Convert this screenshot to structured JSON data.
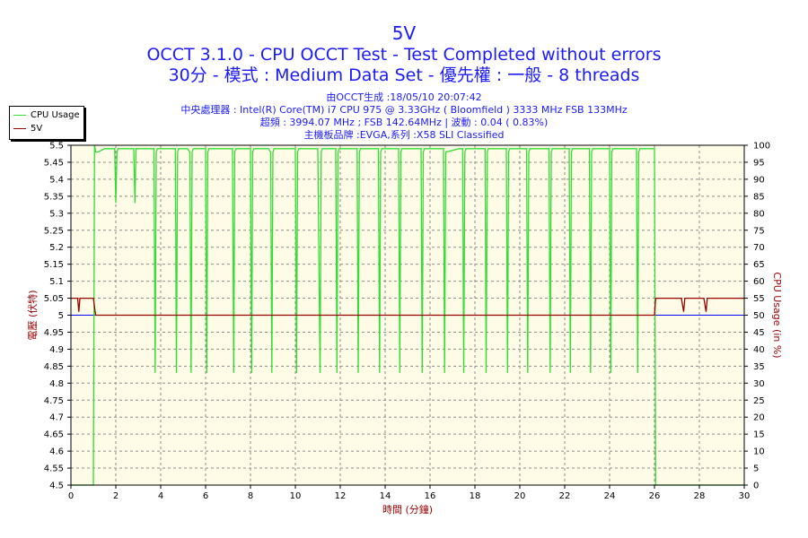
{
  "title": "5V",
  "subtitle1": "OCCT 3.1.0 - CPU OCCT Test - Test Completed without errors",
  "subtitle2": "30分 - 模式 : Medium Data Set - 優先權 : 一般 - 8 threads",
  "info_lines": [
    "由OCCT生成 :18/05/10 20:07:42",
    "中央處理器 : Intel(R) Core(TM) i7 CPU 975 @ 3.33GHz ( Bloomfield ) 3333 MHz FSB 133MHz",
    "超頻 : 3994.07 MHz ; FSB 142.64MHz | 波動 : 0.04 ( 0.83%)",
    "主機板品牌 :EVGA,系列 :X58 SLI Classified"
  ],
  "colors": {
    "title": "#1a1aff",
    "plot_bg": "#fefbe6",
    "grid": "#8c8c8c",
    "cpu_usage": "#33dd33",
    "voltage": "#990000",
    "reference": "#0000ff",
    "left_axis_title": "#990000",
    "right_axis_title": "#990000",
    "x_axis_title": "#990000"
  },
  "chart_data": {
    "type": "line",
    "title": "5V",
    "xlabel": "時間 (分鐘)",
    "ylabel_left": "電壓 (伏特)",
    "ylabel_right": "CPU Usage (in %)",
    "xlim": [
      0,
      30
    ],
    "ylim_left": [
      4.5,
      5.5
    ],
    "ylim_right": [
      0,
      100
    ],
    "x_ticks": [
      0,
      2,
      4,
      6,
      8,
      10,
      12,
      14,
      16,
      18,
      20,
      22,
      24,
      26,
      28,
      30
    ],
    "y_left_ticks": [
      "4.5",
      "4.55",
      "4.6",
      "4.65",
      "4.7",
      "4.75",
      "4.8",
      "4.85",
      "4.9",
      "4.95",
      "5",
      "5.05",
      "5.1",
      "5.15",
      "5.2",
      "5.25",
      "5.3",
      "5.35",
      "5.4",
      "5.45",
      "5.5"
    ],
    "y_right_ticks": [
      "0",
      "5",
      "10",
      "15",
      "20",
      "25",
      "30",
      "35",
      "40",
      "45",
      "50",
      "55",
      "60",
      "65",
      "70",
      "75",
      "80",
      "85",
      "90",
      "95",
      "100"
    ],
    "grid": true,
    "legend": [
      {
        "name": "CPU Usage",
        "color": "#33dd33"
      },
      {
        "name": "5V",
        "color": "#990000"
      }
    ],
    "legend_position": "top-left",
    "reference_line": {
      "value": 5.0,
      "color": "#0000ff"
    },
    "series": [
      {
        "name": "5V",
        "axis": "left",
        "x": [
          0,
          0.3,
          0.35,
          0.4,
          0.42,
          0.5,
          0.55,
          0.6,
          1.0,
          1.1,
          1.2,
          26.0,
          26.05,
          26.1,
          27.2,
          27.3,
          27.35,
          27.5,
          28.2,
          28.3,
          28.35,
          28.5,
          30
        ],
        "y": [
          5.05,
          5.05,
          5.01,
          5.05,
          5.05,
          5.05,
          5.05,
          5.05,
          5.05,
          5.0,
          5.0,
          5.0,
          5.05,
          5.05,
          5.05,
          5.01,
          5.05,
          5.05,
          5.05,
          5.01,
          5.05,
          5.05,
          5.05
        ]
      },
      {
        "name": "CPU Usage",
        "axis": "right",
        "x": [
          0,
          1.0,
          1.05,
          1.1,
          1.2,
          1.5,
          1.95,
          2.0,
          2.05,
          2.1,
          2.8,
          2.85,
          2.9,
          3.5,
          3.7,
          3.75,
          3.8,
          3.85,
          4.2,
          4.5,
          4.65,
          4.7,
          4.75,
          4.8,
          5.2,
          5.3,
          5.35,
          5.4,
          5.45,
          5.9,
          6.0,
          6.05,
          6.1,
          6.15,
          6.5,
          7.1,
          7.2,
          7.25,
          7.3,
          7.35,
          7.8,
          8.0,
          8.05,
          8.1,
          8.15,
          8.5,
          8.8,
          8.9,
          8.95,
          9.0,
          9.05,
          9.5,
          9.9,
          10.0,
          10.05,
          10.1,
          10.15,
          11.0,
          11.1,
          11.15,
          11.2,
          11.8,
          11.85,
          11.9,
          11.95,
          12.3,
          12.75,
          12.8,
          12.85,
          12.9,
          13.7,
          13.75,
          13.8,
          13.85,
          14.6,
          14.65,
          14.7,
          14.75,
          15.5,
          15.6,
          15.65,
          15.7,
          15.75,
          16.5,
          16.6,
          16.65,
          16.7,
          17.3,
          17.45,
          17.5,
          17.55,
          17.6,
          18.3,
          18.45,
          18.5,
          18.55,
          18.6,
          19.2,
          19.4,
          19.45,
          19.5,
          19.55,
          20.2,
          20.3,
          20.35,
          20.4,
          20.45,
          21.3,
          21.35,
          21.4,
          21.45,
          22.1,
          22.2,
          22.25,
          22.3,
          22.35,
          22.9,
          23.1,
          23.15,
          23.2,
          23.25,
          23.9,
          24.0,
          24.05,
          24.1,
          24.15,
          24.8,
          25.2,
          25.25,
          25.3,
          25.35,
          25.9,
          26.0,
          26.05,
          26.1,
          30
        ],
        "y": [
          0,
          0,
          100,
          98,
          98,
          99,
          99,
          83,
          98,
          99,
          99,
          83,
          99,
          99,
          99,
          33,
          98,
          99,
          99,
          99,
          99,
          33,
          98,
          99,
          99,
          98,
          33,
          98,
          99,
          99,
          99,
          33,
          98,
          99,
          99,
          99,
          99,
          33,
          98,
          99,
          99,
          99,
          33,
          98,
          99,
          99,
          99,
          98,
          33,
          98,
          99,
          99,
          99,
          99,
          33,
          98,
          99,
          99,
          33,
          98,
          99,
          99,
          33,
          98,
          99,
          99,
          99,
          33,
          98,
          99,
          99,
          33,
          98,
          99,
          99,
          33,
          98,
          99,
          99,
          99,
          33,
          98,
          99,
          99,
          99,
          33,
          98,
          99,
          99,
          33,
          98,
          99,
          99,
          99,
          33,
          98,
          99,
          99,
          99,
          33,
          98,
          99,
          99,
          99,
          33,
          98,
          99,
          99,
          33,
          98,
          99,
          99,
          99,
          33,
          98,
          99,
          99,
          99,
          33,
          98,
          99,
          99,
          99,
          33,
          98,
          99,
          99,
          99,
          33,
          98,
          99,
          99,
          99,
          0,
          0,
          0
        ]
      }
    ]
  }
}
